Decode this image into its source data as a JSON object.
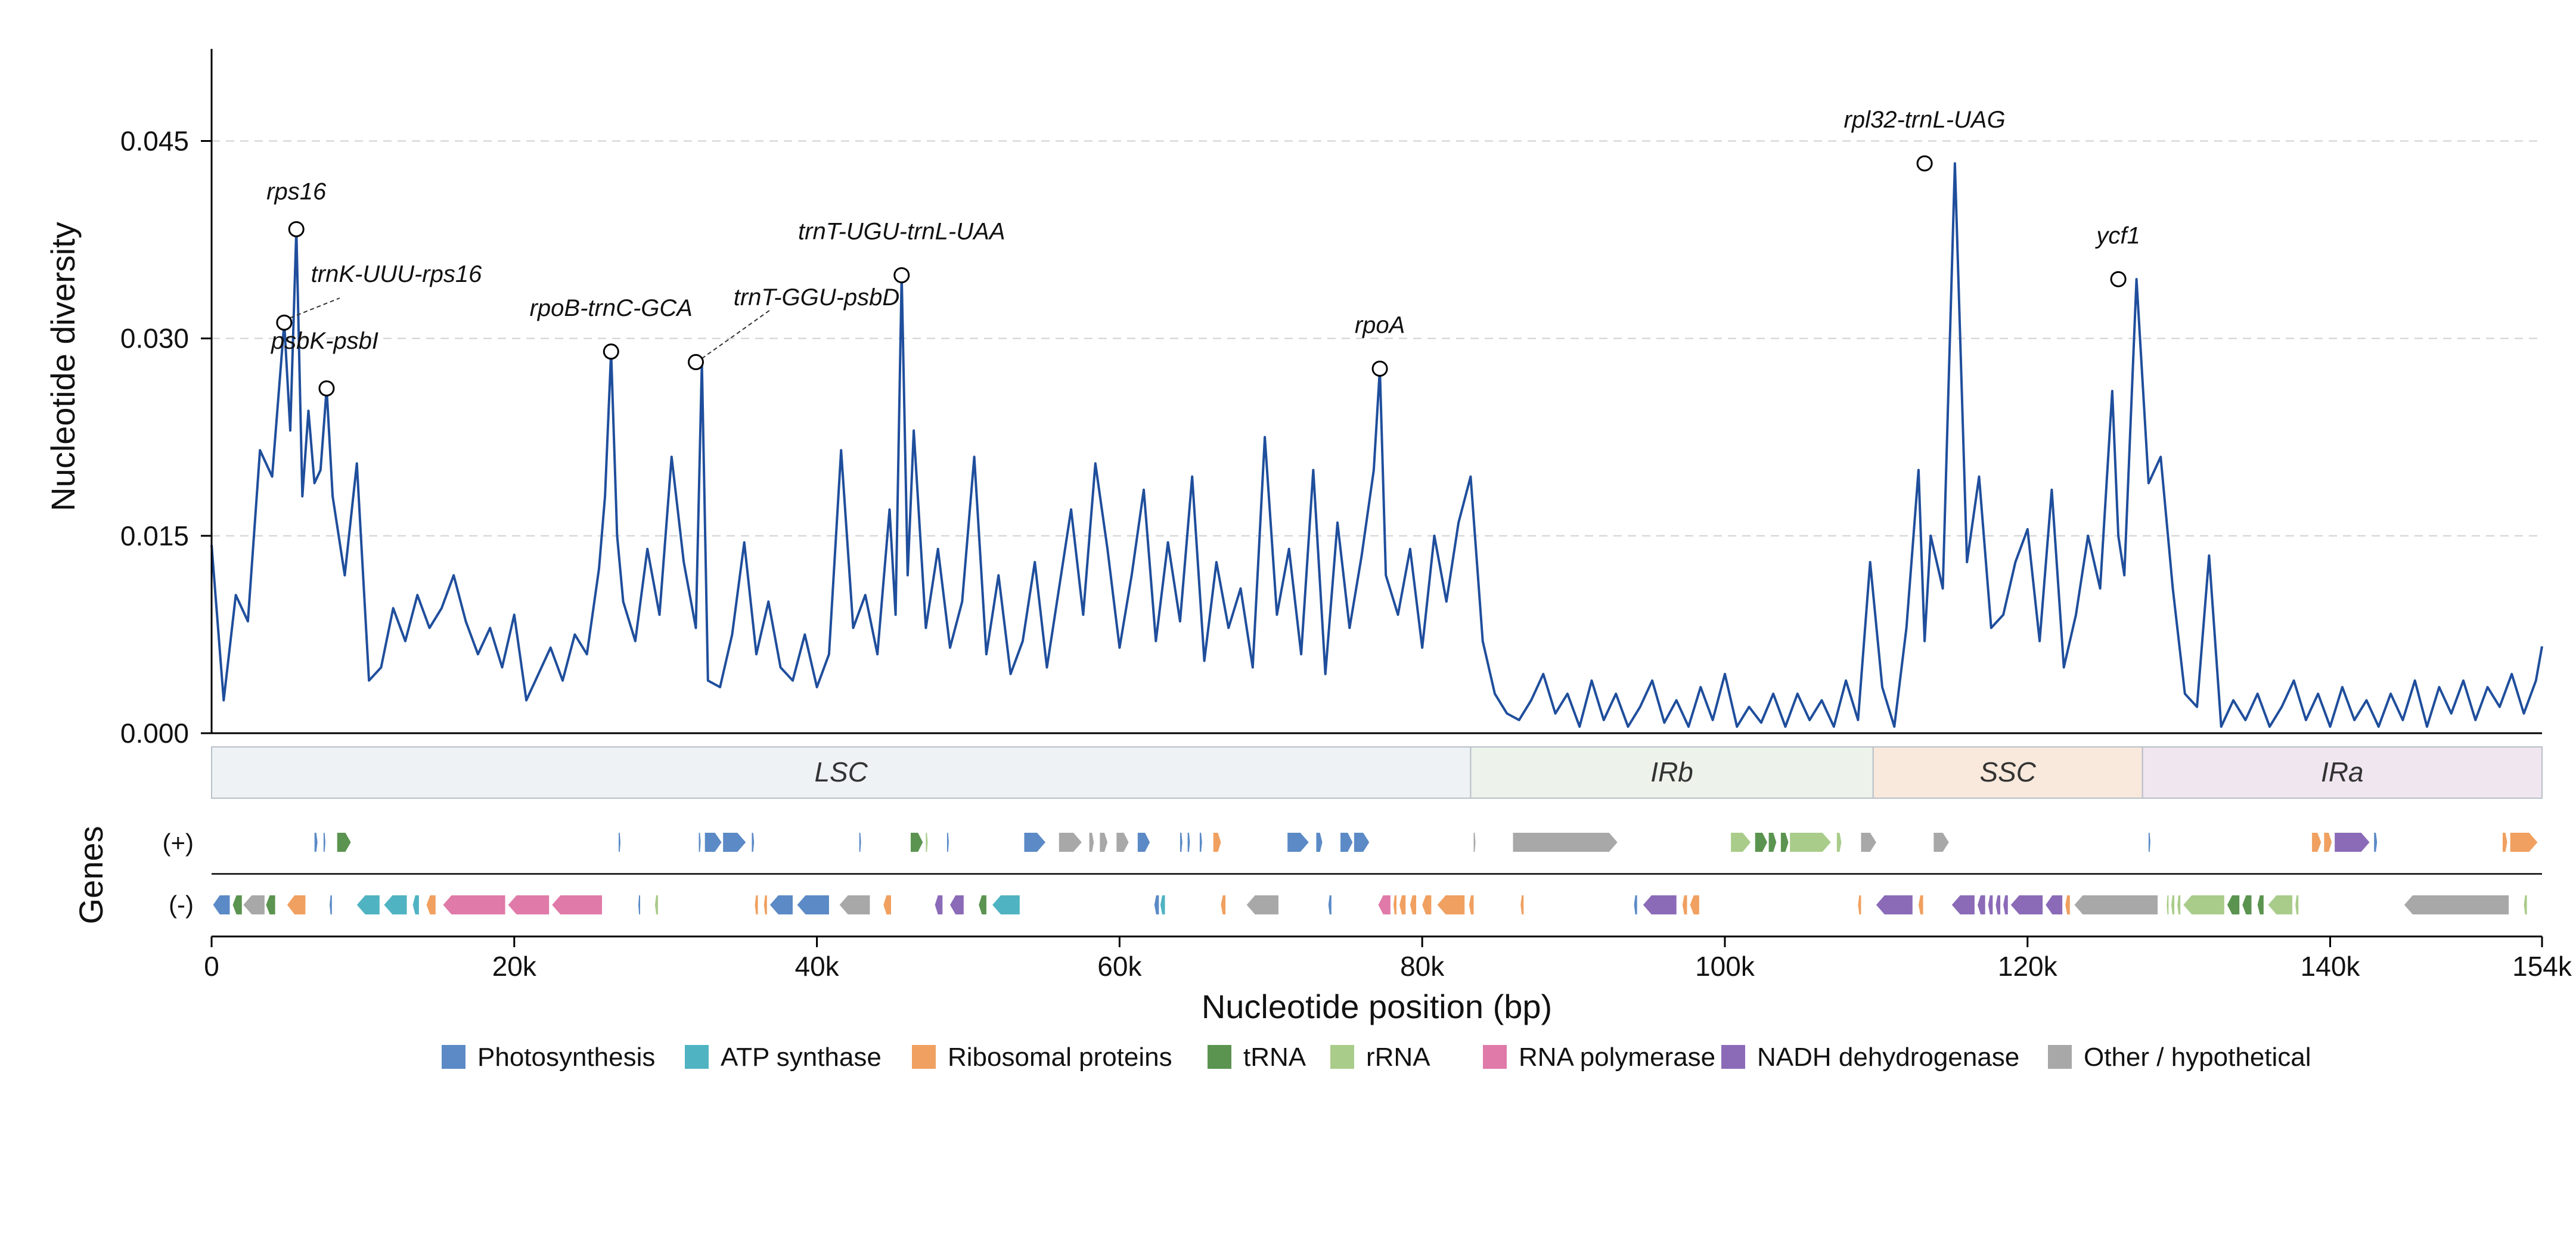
{
  "chart_data": {
    "type": "line",
    "xlabel": "Nucleotide position (bp)",
    "ylabel": "Nucleotide diversity",
    "xlim": [
      0,
      154000
    ],
    "ylim": [
      0,
      0.052
    ],
    "x_ticks": [
      0,
      20000,
      40000,
      60000,
      80000,
      100000,
      120000,
      140000,
      154000
    ],
    "x_tick_labels": [
      "0",
      "20k",
      "40k",
      "60k",
      "80k",
      "100k",
      "120k",
      "140k",
      "154k"
    ],
    "y_ticks": [
      0.0,
      0.015,
      0.03,
      0.045
    ],
    "y_tick_labels": [
      "0.000",
      "0.015",
      "0.030",
      "0.045"
    ],
    "grid": "horizontal dashed",
    "line_color": "#1f4e9c",
    "series": [
      {
        "x": [
          0,
          800,
          1600,
          2400,
          3200,
          4000,
          4800,
          5200,
          5600,
          6000,
          6400,
          6800,
          7200,
          7600,
          8000,
          8800,
          9600,
          10400,
          11200,
          12000,
          12800,
          13600,
          14400,
          15200,
          16000,
          16800,
          17600,
          18400,
          19200,
          20000,
          20800,
          21600,
          22400,
          23200,
          24000,
          24800,
          25600,
          26000,
          26400,
          26800,
          27200,
          28000,
          28800,
          29600,
          30400,
          31200,
          32000,
          32400,
          32800,
          33600,
          34400,
          35200,
          36000,
          36800,
          37600,
          38400,
          39200,
          40000,
          40800,
          41600,
          42400,
          43200,
          44000,
          44800,
          45200,
          45600,
          46000,
          46400,
          47200,
          48000,
          48800,
          49600,
          50400,
          51200,
          52000,
          52800,
          53600,
          54400,
          55200,
          56000,
          56800,
          57600,
          58400,
          59200,
          60000,
          60800,
          61600,
          62400,
          63200,
          64000,
          64800,
          65600,
          66400,
          67200,
          68000,
          68800,
          69600,
          70400,
          71200,
          72000,
          72800,
          73600,
          74400,
          75200,
          76000,
          76800,
          77200,
          77600,
          78400,
          79200,
          80000,
          80800,
          81600,
          82400,
          83200,
          84000,
          84800,
          85600,
          86400,
          87200,
          88000,
          88800,
          89600,
          90400,
          91200,
          92000,
          92800,
          93600,
          94400,
          95200,
          96000,
          96800,
          97600,
          98400,
          99200,
          100000,
          100800,
          101600,
          102400,
          103200,
          104000,
          104800,
          105600,
          106400,
          107200,
          108000,
          108800,
          109600,
          110400,
          111200,
          112000,
          112800,
          113200,
          113600,
          114400,
          115200,
          116000,
          116800,
          117600,
          118400,
          119200,
          120000,
          120800,
          121600,
          122400,
          123200,
          124000,
          124800,
          125600,
          126000,
          126400,
          127200,
          128000,
          128800,
          129600,
          130400,
          131200,
          132000,
          132800,
          133600,
          134400,
          135200,
          136000,
          136800,
          137600,
          138400,
          139200,
          140000,
          140800,
          141600,
          142400,
          143200,
          144000,
          144800,
          145600,
          146400,
          147200,
          148000,
          148800,
          149600,
          150400,
          151200,
          152000,
          152800,
          153600,
          154000
        ],
        "y": [
          0.0143,
          0.0025,
          0.0105,
          0.0085,
          0.0215,
          0.0195,
          0.0312,
          0.023,
          0.0383,
          0.018,
          0.0245,
          0.019,
          0.02,
          0.0262,
          0.018,
          0.012,
          0.0205,
          0.004,
          0.005,
          0.0095,
          0.007,
          0.0105,
          0.008,
          0.0095,
          0.012,
          0.0085,
          0.006,
          0.008,
          0.005,
          0.009,
          0.0025,
          0.0045,
          0.0065,
          0.004,
          0.0075,
          0.006,
          0.0125,
          0.018,
          0.029,
          0.015,
          0.01,
          0.007,
          0.014,
          0.009,
          0.021,
          0.013,
          0.008,
          0.0282,
          0.004,
          0.0035,
          0.0075,
          0.0145,
          0.006,
          0.01,
          0.005,
          0.004,
          0.0075,
          0.0035,
          0.006,
          0.0215,
          0.008,
          0.0105,
          0.006,
          0.017,
          0.009,
          0.0348,
          0.012,
          0.023,
          0.008,
          0.014,
          0.0065,
          0.01,
          0.021,
          0.006,
          0.012,
          0.0045,
          0.007,
          0.013,
          0.005,
          0.011,
          0.017,
          0.009,
          0.0205,
          0.014,
          0.0065,
          0.012,
          0.0185,
          0.007,
          0.0145,
          0.0085,
          0.0195,
          0.0055,
          0.013,
          0.008,
          0.011,
          0.005,
          0.0225,
          0.009,
          0.014,
          0.006,
          0.02,
          0.0045,
          0.016,
          0.008,
          0.0135,
          0.02,
          0.0277,
          0.012,
          0.009,
          0.014,
          0.0065,
          0.015,
          0.01,
          0.016,
          0.0195,
          0.007,
          0.003,
          0.0015,
          0.001,
          0.0025,
          0.0045,
          0.0015,
          0.003,
          0.0005,
          0.004,
          0.001,
          0.003,
          0.0005,
          0.002,
          0.004,
          0.0008,
          0.0025,
          0.0005,
          0.0035,
          0.001,
          0.0045,
          0.0005,
          0.002,
          0.0008,
          0.003,
          0.0005,
          0.003,
          0.001,
          0.0025,
          0.0005,
          0.004,
          0.001,
          0.013,
          0.0035,
          0.0005,
          0.008,
          0.02,
          0.007,
          0.015,
          0.011,
          0.0433,
          0.013,
          0.0195,
          0.008,
          0.009,
          0.013,
          0.0155,
          0.007,
          0.0185,
          0.005,
          0.009,
          0.015,
          0.011,
          0.026,
          0.015,
          0.012,
          0.0345,
          0.019,
          0.021,
          0.011,
          0.003,
          0.002,
          0.0135,
          0.0005,
          0.0025,
          0.001,
          0.003,
          0.0005,
          0.002,
          0.004,
          0.001,
          0.003,
          0.0005,
          0.0035,
          0.001,
          0.0025,
          0.0005,
          0.003,
          0.001,
          0.004,
          0.0005,
          0.0035,
          0.0015,
          0.004,
          0.001,
          0.0035,
          0.002,
          0.0045,
          0.0015,
          0.004,
          0.0066
        ]
      }
    ],
    "peaks": [
      {
        "label": "rps16",
        "x": 5600,
        "y": 0.0383
      },
      {
        "label": "trnK-UUU-rps16",
        "x": 4800,
        "y": 0.0312
      },
      {
        "label": "psbK-psbI",
        "x": 7600,
        "y": 0.0262
      },
      {
        "label": "rpoB-trnC-GCA",
        "x": 26400,
        "y": 0.029
      },
      {
        "label": "trnT-GGU-psbD",
        "x": 32000,
        "y": 0.0282
      },
      {
        "label": "trnT-UGU-trnL-UAA",
        "x": 45600,
        "y": 0.0348
      },
      {
        "label": "rpoA",
        "x": 77200,
        "y": 0.0277
      },
      {
        "label": "rpl32-trnL-UAG",
        "x": 113200,
        "y": 0.0433
      },
      {
        "label": "ycf1",
        "x": 126000,
        "y": 0.0345
      }
    ],
    "regions": [
      {
        "label": "LSC",
        "start": 0,
        "end": 83200,
        "color": "#eef2f5"
      },
      {
        "label": "IRb",
        "start": 83200,
        "end": 109800,
        "color": "#edf2ea"
      },
      {
        "label": "SSC",
        "start": 109800,
        "end": 127600,
        "color": "#f8e9dc"
      },
      {
        "label": "IRa",
        "start": 127600,
        "end": 154000,
        "color": "#f0e6f0"
      }
    ],
    "genes_axis_label": "Genes",
    "strand_labels": [
      "(+)",
      "(-)"
    ],
    "gene_categories": [
      {
        "name": "Photosynthesis",
        "color": "#5b8ac6"
      },
      {
        "name": "ATP synthase",
        "color": "#4fb3c2"
      },
      {
        "name": "Ribosomal proteins",
        "color": "#f0a060"
      },
      {
        "name": "tRNA",
        "color": "#5b9450"
      },
      {
        "name": "rRNA",
        "color": "#a9cc8a"
      },
      {
        "name": "RNA polymerase",
        "color": "#e07aa8"
      },
      {
        "name": "NADH dehydrogenase",
        "color": "#8b6bb8"
      },
      {
        "name": "Other / hypothetical",
        "color": "#a8a8a8"
      }
    ],
    "genes_plus": [
      [
        6800,
        7000,
        0
      ],
      [
        7400,
        7500,
        0
      ],
      [
        8300,
        9200,
        3
      ],
      [
        26900,
        27000,
        0
      ],
      [
        32200,
        32300,
        0
      ],
      [
        32600,
        33700,
        0
      ],
      [
        33800,
        35300,
        0
      ],
      [
        35700,
        35850,
        0
      ],
      [
        42800,
        42900,
        0
      ],
      [
        46200,
        47000,
        3
      ],
      [
        47200,
        47300,
        4
      ],
      [
        48600,
        48700,
        0
      ],
      [
        53700,
        55100,
        0
      ],
      [
        56000,
        57500,
        7
      ],
      [
        58000,
        58300,
        7
      ],
      [
        58700,
        59200,
        7
      ],
      [
        59800,
        60600,
        7
      ],
      [
        61200,
        62000,
        0
      ],
      [
        64000,
        64150,
        0
      ],
      [
        64500,
        64650,
        0
      ],
      [
        65300,
        65450,
        0
      ],
      [
        66200,
        66700,
        2
      ],
      [
        71100,
        72500,
        0
      ],
      [
        73000,
        73400,
        0
      ],
      [
        74600,
        75400,
        0
      ],
      [
        75500,
        76500,
        0
      ],
      [
        83400,
        83500,
        7
      ],
      [
        86000,
        92900,
        7
      ],
      [
        100400,
        101700,
        4
      ],
      [
        102000,
        102800,
        3
      ],
      [
        102900,
        103400,
        3
      ],
      [
        103700,
        104200,
        3
      ],
      [
        104300,
        107000,
        4
      ],
      [
        107400,
        107700,
        4
      ],
      [
        109000,
        110000,
        7
      ],
      [
        113800,
        114800,
        7
      ],
      [
        128000,
        128100,
        0
      ],
      [
        138800,
        139400,
        2
      ],
      [
        139600,
        140100,
        2
      ],
      [
        140300,
        142600,
        6
      ],
      [
        142900,
        143100,
        0
      ],
      [
        151400,
        151700,
        2
      ],
      [
        151900,
        153700,
        2
      ]
    ],
    "genes_minus": [
      [
        100,
        1200,
        0
      ],
      [
        1400,
        2000,
        3
      ],
      [
        2100,
        3500,
        7
      ],
      [
        3600,
        4200,
        3
      ],
      [
        5000,
        6200,
        2
      ],
      [
        7800,
        7950,
        0
      ],
      [
        9600,
        11100,
        1
      ],
      [
        11400,
        12900,
        1
      ],
      [
        13300,
        13700,
        1
      ],
      [
        14200,
        14800,
        2
      ],
      [
        15300,
        19400,
        5
      ],
      [
        19600,
        22300,
        5
      ],
      [
        22500,
        25800,
        5
      ],
      [
        28200,
        28300,
        0
      ],
      [
        29300,
        29500,
        4
      ],
      [
        35900,
        36100,
        2
      ],
      [
        36500,
        36700,
        2
      ],
      [
        36900,
        38400,
        0
      ],
      [
        38700,
        40800,
        0
      ],
      [
        41500,
        43500,
        7
      ],
      [
        44400,
        44900,
        2
      ],
      [
        47800,
        48300,
        6
      ],
      [
        48800,
        49700,
        6
      ],
      [
        50700,
        51200,
        3
      ],
      [
        51600,
        53400,
        1
      ],
      [
        62300,
        62600,
        0
      ],
      [
        62700,
        63000,
        1
      ],
      [
        66700,
        67000,
        2
      ],
      [
        68400,
        70500,
        7
      ],
      [
        73800,
        74000,
        0
      ],
      [
        77100,
        77900,
        5
      ],
      [
        78100,
        78300,
        2
      ],
      [
        78500,
        78900,
        2
      ],
      [
        79200,
        79600,
        2
      ],
      [
        80000,
        80600,
        2
      ],
      [
        81000,
        82800,
        2
      ],
      [
        83100,
        83400,
        2
      ],
      [
        86500,
        86700,
        2
      ],
      [
        94000,
        94200,
        0
      ],
      [
        94600,
        96800,
        6
      ],
      [
        97200,
        97500,
        2
      ],
      [
        97700,
        98300,
        2
      ],
      [
        108800,
        109000,
        2
      ],
      [
        110000,
        112400,
        6
      ],
      [
        112800,
        113100,
        2
      ],
      [
        115000,
        116500,
        6
      ],
      [
        116700,
        117200,
        6
      ],
      [
        117400,
        117700,
        6
      ],
      [
        117900,
        118200,
        6
      ],
      [
        118400,
        118700,
        6
      ],
      [
        118900,
        121000,
        6
      ],
      [
        121200,
        122300,
        6
      ],
      [
        122500,
        122800,
        2
      ],
      [
        123100,
        128600,
        7
      ],
      [
        129200,
        129300,
        4
      ],
      [
        129500,
        129700,
        4
      ],
      [
        129900,
        130100,
        4
      ],
      [
        130300,
        133000,
        4
      ],
      [
        133200,
        134000,
        3
      ],
      [
        134200,
        134800,
        3
      ],
      [
        135200,
        135600,
        3
      ],
      [
        135900,
        137500,
        4
      ],
      [
        137700,
        137900,
        4
      ],
      [
        144900,
        151800,
        7
      ],
      [
        152800,
        153000,
        4
      ]
    ]
  }
}
